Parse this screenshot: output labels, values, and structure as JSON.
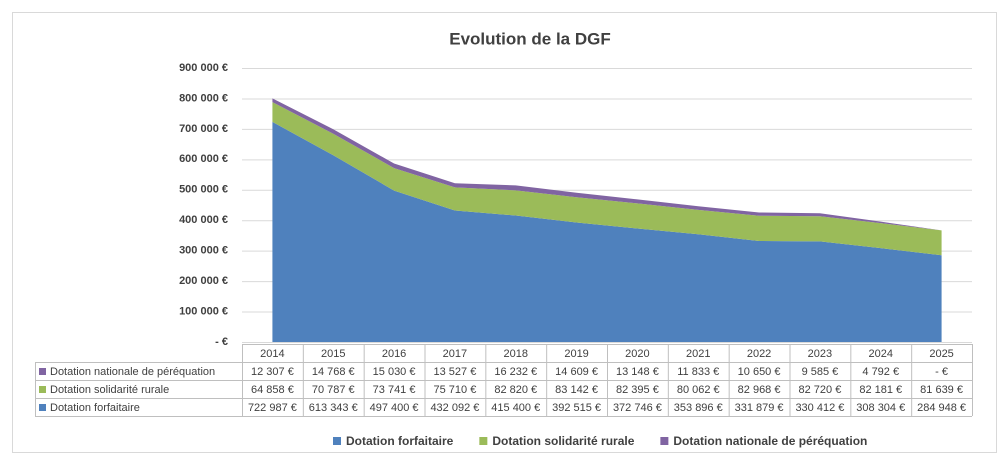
{
  "chart_data": {
    "type": "stacked_area",
    "title": "Evolution de la DGF",
    "categories": [
      "2014",
      "2015",
      "2016",
      "2017",
      "2018",
      "2019",
      "2020",
      "2021",
      "2022",
      "2023",
      "2024",
      "2025"
    ],
    "series": [
      {
        "name": "Dotation forfaitaire",
        "color": "#4f81bd",
        "values": [
          722987,
          613343,
          497400,
          432092,
          415400,
          392515,
          372746,
          353896,
          331879,
          330412,
          308304,
          284948
        ],
        "value_labels": [
          "722 987 €",
          "613 343 €",
          "497 400 €",
          "432 092 €",
          "415 400 €",
          "392 515 €",
          "372 746 €",
          "353 896 €",
          "331 879 €",
          "330 412 €",
          "308 304 €",
          "284 948 €"
        ]
      },
      {
        "name": "Dotation solidarité rurale",
        "color": "#9bbb59",
        "values": [
          64858,
          70787,
          73741,
          75710,
          82820,
          83142,
          82395,
          80062,
          82968,
          82720,
          82181,
          81639
        ],
        "value_labels": [
          "64 858 €",
          "70 787 €",
          "73 741 €",
          "75 710 €",
          "82 820 €",
          "83 142 €",
          "82 395 €",
          "80 062 €",
          "82 968 €",
          "82 720 €",
          "82 181 €",
          "81 639 €"
        ]
      },
      {
        "name": "Dotation nationale de péréquation",
        "color": "#8064a2",
        "values": [
          12307,
          14768,
          15030,
          13527,
          16232,
          14609,
          13148,
          11833,
          10650,
          9585,
          4792,
          0
        ],
        "value_labels": [
          "12 307 €",
          "14 768 €",
          "15 030 €",
          "13 527 €",
          "16 232 €",
          "14 609 €",
          "13 148 €",
          "11 833 €",
          "10 650 €",
          "9 585 €",
          "4 792 €",
          "- €"
        ]
      }
    ],
    "ylim": [
      0,
      900000
    ],
    "yticks": [
      {
        "value": 0,
        "label": "- €"
      },
      {
        "value": 100000,
        "label": "100 000 €"
      },
      {
        "value": 200000,
        "label": "200 000 €"
      },
      {
        "value": 300000,
        "label": "300 000 €"
      },
      {
        "value": 400000,
        "label": "400 000 €"
      },
      {
        "value": 500000,
        "label": "500 000 €"
      },
      {
        "value": 600000,
        "label": "600 000 €"
      },
      {
        "value": 700000,
        "label": "700 000 €"
      },
      {
        "value": 800000,
        "label": "800 000 €"
      },
      {
        "value": 900000,
        "label": "900 000 €"
      }
    ],
    "grid": true,
    "legend": "bottom"
  }
}
